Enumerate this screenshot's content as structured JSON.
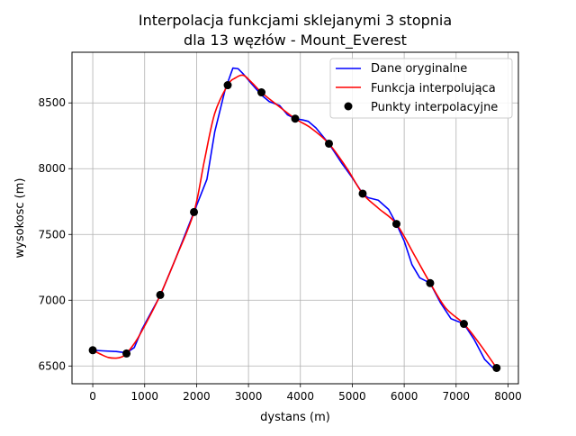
{
  "chart_data": {
    "type": "line",
    "title_line1": "Interpolacja funkcjami sklejanymi 3 stopnia",
    "title_line2": "dla 13 węzłów - Mount_Everest",
    "xlabel": "dystans (m)",
    "ylabel": "wysokosc (m)",
    "xlim": [
      -400,
      8200
    ],
    "ylim": [
      6365,
      8885
    ],
    "xticks": [
      0,
      1000,
      2000,
      3000,
      4000,
      5000,
      6000,
      7000,
      8000
    ],
    "yticks": [
      6500,
      7000,
      7500,
      8000,
      8500
    ],
    "grid": true,
    "legend_position": "top-right",
    "series": [
      {
        "name": "Dane oryginalne",
        "color": "#0000ff",
        "style": "line",
        "x": [
          0,
          200,
          450,
          650,
          800,
          950,
          1300,
          1600,
          1950,
          2200,
          2350,
          2550,
          2700,
          2800,
          2900,
          3050,
          3250,
          3400,
          3600,
          3750,
          3900,
          4050,
          4150,
          4300,
          4550,
          4800,
          5000,
          5200,
          5300,
          5500,
          5700,
          5850,
          6000,
          6150,
          6300,
          6500,
          6700,
          6900,
          7150,
          7350,
          7550,
          7700,
          7780
        ],
        "y": [
          6620,
          6615,
          6610,
          6600,
          6640,
          6780,
          7035,
          7320,
          7670,
          7920,
          8280,
          8600,
          8765,
          8760,
          8720,
          8650,
          8560,
          8510,
          8480,
          8410,
          8380,
          8370,
          8360,
          8310,
          8190,
          8040,
          7930,
          7810,
          7780,
          7760,
          7690,
          7580,
          7450,
          7270,
          7170,
          7130,
          6980,
          6860,
          6820,
          6700,
          6550,
          6490,
          6485
        ]
      },
      {
        "name": "Funkcja interpolująca",
        "color": "#ff0000",
        "style": "line",
        "x": [
          0,
          150,
          300,
          450,
          550,
          650,
          850,
          1100,
          1300,
          1600,
          1950,
          2150,
          2350,
          2600,
          2750,
          2900,
          3050,
          3250,
          3500,
          3900,
          4200,
          4550,
          4900,
          5200,
          5500,
          5850,
          6200,
          6500,
          6800,
          7150,
          7450,
          7780
        ],
        "y": [
          6620,
          6590,
          6565,
          6560,
          6568,
          6595,
          6700,
          6880,
          7040,
          7320,
          7670,
          8060,
          8420,
          8635,
          8690,
          8710,
          8660,
          8580,
          8500,
          8380,
          8310,
          8190,
          8000,
          7810,
          7700,
          7580,
          7340,
          7130,
          6940,
          6820,
          6670,
          6485
        ]
      },
      {
        "name": "Punkty interpolacyjne",
        "color": "#000000",
        "style": "marker",
        "x": [
          0,
          650,
          1300,
          1950,
          2600,
          3250,
          3900,
          4550,
          5200,
          5850,
          6500,
          7150,
          7780
        ],
        "y": [
          6620,
          6595,
          7040,
          7670,
          8635,
          8580,
          8380,
          8190,
          7810,
          7580,
          7130,
          6820,
          6485
        ]
      }
    ]
  }
}
